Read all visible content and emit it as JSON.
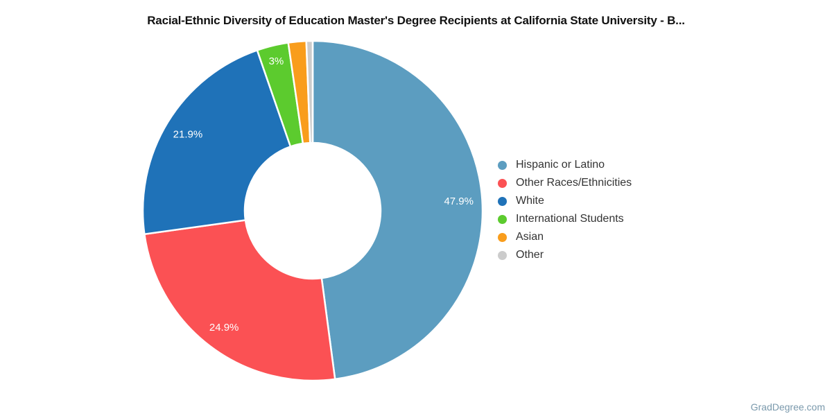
{
  "title": "Racial-Ethnic Diversity of Education Master's Degree Recipients at California State University - B...",
  "credits": "GradDegree.com",
  "chart_data": {
    "type": "pie",
    "subtype": "donut",
    "title": "Racial-Ethnic Diversity of Education Master's Degree Recipients at California State University - B...",
    "categories": [
      "Hispanic or Latino",
      "Other Races/Ethnicities",
      "White",
      "International Students",
      "Asian",
      "Other"
    ],
    "values": [
      47.9,
      24.9,
      21.9,
      3,
      1.7,
      0.6
    ],
    "slice_labels": [
      "47.9%",
      "24.9%",
      "21.9%",
      "3%",
      "",
      ""
    ],
    "colors": [
      "#5C9DC0",
      "#FB5154",
      "#1F72B8",
      "#5CCB2E",
      "#F99D1C",
      "#CCCCCC"
    ],
    "units": "%",
    "start_angle_deg": 0,
    "direction": "clockwise",
    "legend_position": "right",
    "slice_label_color": "#FFFFFF",
    "legend_text_color": "#333333",
    "credits_color": "#7A99AC",
    "background_color": "#FFFFFF"
  }
}
